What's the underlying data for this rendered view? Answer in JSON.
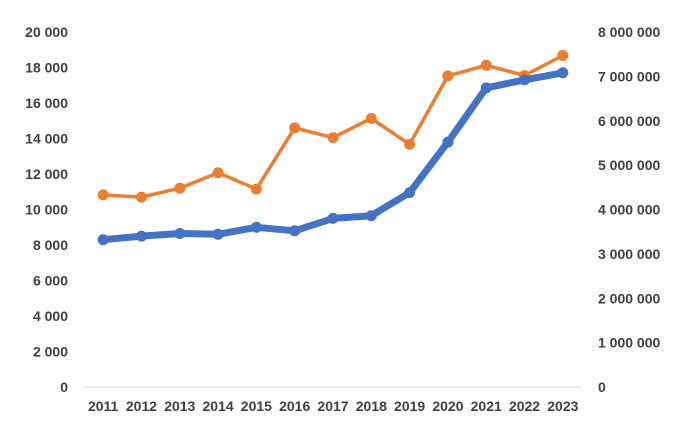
{
  "chart_data": {
    "type": "line",
    "categories": [
      "2011",
      "2012",
      "2013",
      "2014",
      "2015",
      "2016",
      "2017",
      "2018",
      "2019",
      "2020",
      "2021",
      "2022",
      "2023"
    ],
    "y_left": {
      "ticks": [
        "0",
        "2 000",
        "4 000",
        "6 000",
        "8 000",
        "10 000",
        "12 000",
        "14 000",
        "16 000",
        "18 000",
        "20 000"
      ],
      "ylim": [
        0,
        20000
      ]
    },
    "y_right": {
      "ticks": [
        "0",
        "1 000 000",
        "2 000 000",
        "3 000 000",
        "4 000 000",
        "5 000 000",
        "6 000 000",
        "7 000 000",
        "8 000 000"
      ],
      "ylim": [
        0,
        8000000
      ]
    },
    "series": [
      {
        "axis": "left",
        "color": "#4472C4",
        "values": [
          8300,
          8500,
          8650,
          8600,
          9000,
          8800,
          9500,
          9650,
          10950,
          13800,
          16850,
          17300,
          17700
        ]
      },
      {
        "axis": "right",
        "color": "#ED7D31",
        "values": [
          4330000,
          4280000,
          4480000,
          4830000,
          4460000,
          5840000,
          5620000,
          6050000,
          5470000,
          7010000,
          7250000,
          7020000,
          7470000
        ]
      }
    ],
    "grid": false,
    "legend": "none"
  }
}
